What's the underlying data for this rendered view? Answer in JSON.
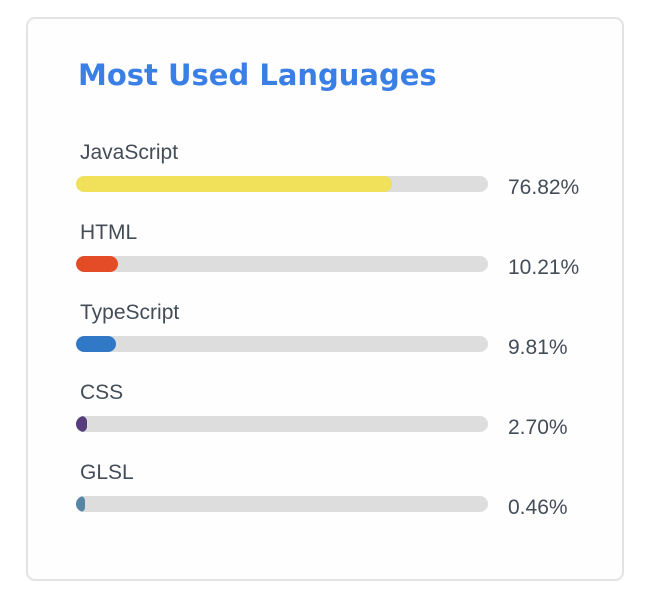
{
  "card": {
    "title": "Most Used Languages",
    "title_color": "#3a7fe6"
  },
  "chart_data": {
    "type": "bar",
    "title": "Most Used Languages",
    "categories": [
      "JavaScript",
      "HTML",
      "TypeScript",
      "CSS",
      "GLSL"
    ],
    "values": [
      76.82,
      10.21,
      9.81,
      2.7,
      0.46
    ],
    "labels": [
      "76.82%",
      "10.21%",
      "9.81%",
      "2.70%",
      "0.46%"
    ],
    "colors": [
      "#f1e05a",
      "#e34c26",
      "#3178c6",
      "#563d7c",
      "#5686a5"
    ],
    "track_color": "#dddddd",
    "xlim": [
      0,
      100
    ],
    "orientation": "horizontal",
    "grid": false,
    "legend": false
  }
}
